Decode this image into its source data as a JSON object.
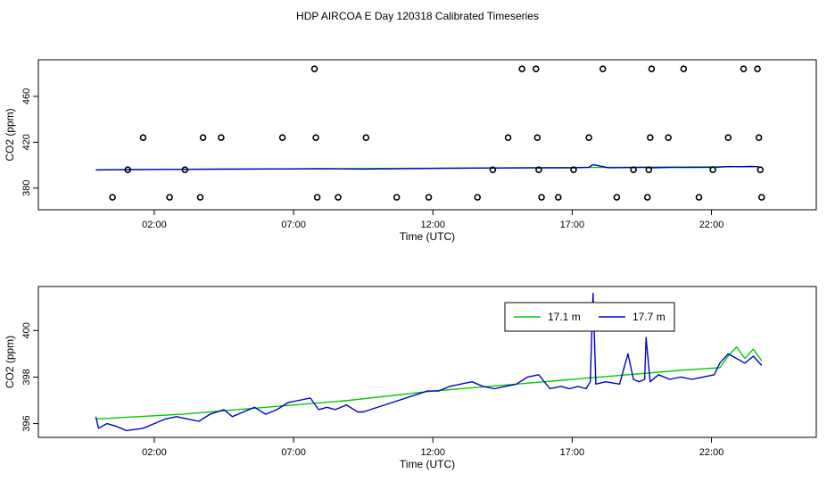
{
  "title": "HDP AIRCOA E  Day 120318  Calibrated Timeseries",
  "chart_data": [
    {
      "type": "scatter",
      "xlabel": "Time (UTC)",
      "ylabel": "CO2 (ppm)",
      "x_units": "hours UTC",
      "xlim": [
        -1.2,
        24.8
      ],
      "ylim": [
        365,
        488
      ],
      "x_ticks": [
        {
          "v": 2,
          "label": "02:00"
        },
        {
          "v": 7,
          "label": "07:00"
        },
        {
          "v": 12,
          "label": "12:00"
        },
        {
          "v": 17,
          "label": "17:00"
        },
        {
          "v": 22,
          "label": "22:00"
        }
      ],
      "y_ticks": [
        {
          "v": 380,
          "label": "380"
        },
        {
          "v": 420,
          "label": "420"
        },
        {
          "v": 460,
          "label": "460"
        }
      ],
      "points": [
        {
          "x": 0.5,
          "y": 372
        },
        {
          "x": 1.05,
          "y": 396
        },
        {
          "x": 1.6,
          "y": 424
        },
        {
          "x": 2.55,
          "y": 372
        },
        {
          "x": 3.1,
          "y": 396
        },
        {
          "x": 3.65,
          "y": 372
        },
        {
          "x": 3.75,
          "y": 424
        },
        {
          "x": 4.4,
          "y": 424
        },
        {
          "x": 6.6,
          "y": 424
        },
        {
          "x": 7.75,
          "y": 484
        },
        {
          "x": 7.8,
          "y": 424
        },
        {
          "x": 7.85,
          "y": 372
        },
        {
          "x": 8.6,
          "y": 372
        },
        {
          "x": 9.6,
          "y": 424
        },
        {
          "x": 10.7,
          "y": 372
        },
        {
          "x": 11.85,
          "y": 372
        },
        {
          "x": 13.6,
          "y": 372
        },
        {
          "x": 14.15,
          "y": 396
        },
        {
          "x": 14.7,
          "y": 424
        },
        {
          "x": 15.2,
          "y": 484
        },
        {
          "x": 15.7,
          "y": 484
        },
        {
          "x": 15.75,
          "y": 424
        },
        {
          "x": 15.8,
          "y": 396
        },
        {
          "x": 15.9,
          "y": 372
        },
        {
          "x": 16.5,
          "y": 372
        },
        {
          "x": 17.05,
          "y": 396
        },
        {
          "x": 17.6,
          "y": 424
        },
        {
          "x": 18.1,
          "y": 484
        },
        {
          "x": 18.6,
          "y": 372
        },
        {
          "x": 19.2,
          "y": 396
        },
        {
          "x": 19.7,
          "y": 372
        },
        {
          "x": 19.75,
          "y": 396
        },
        {
          "x": 19.8,
          "y": 424
        },
        {
          "x": 19.85,
          "y": 484
        },
        {
          "x": 20.45,
          "y": 424
        },
        {
          "x": 21.0,
          "y": 484
        },
        {
          "x": 21.55,
          "y": 372
        },
        {
          "x": 22.05,
          "y": 396
        },
        {
          "x": 22.6,
          "y": 424
        },
        {
          "x": 23.15,
          "y": 484
        },
        {
          "x": 23.65,
          "y": 484
        },
        {
          "x": 23.7,
          "y": 424
        },
        {
          "x": 23.75,
          "y": 396
        },
        {
          "x": 23.8,
          "y": 372
        }
      ],
      "lines": [
        {
          "color": "#00cc00",
          "x": [
            -0.1,
            23.5
          ],
          "y": [
            396,
            398.7
          ]
        },
        {
          "color": "#0000cc",
          "x": [
            -0.1,
            1.0,
            3.0,
            5.0,
            7.0,
            8.0,
            9.5,
            11.5,
            13.5,
            15.5,
            17.0,
            17.6,
            17.75,
            18.3,
            19.2,
            19.6,
            19.8,
            20.5,
            21.3,
            22.2,
            22.6,
            23.0,
            23.4,
            23.7
          ],
          "y": [
            395.8,
            396.1,
            396.4,
            396.6,
            396.8,
            396.9,
            396.6,
            397.1,
            397.5,
            397.6,
            397.7,
            398.2,
            400.5,
            397.8,
            397.9,
            398.2,
            397.7,
            398.1,
            398.0,
            398.2,
            398.8,
            398.6,
            398.9,
            398.6
          ]
        }
      ]
    },
    {
      "type": "line",
      "xlabel": "Time (UTC)",
      "ylabel": "CO2 (ppm)",
      "x_units": "hours UTC",
      "xlim": [
        -1.2,
        24.8
      ],
      "ylim": [
        395.6,
        401.7
      ],
      "x_ticks": [
        {
          "v": 2,
          "label": "02:00"
        },
        {
          "v": 7,
          "label": "07:00"
        },
        {
          "v": 12,
          "label": "12:00"
        },
        {
          "v": 17,
          "label": "17:00"
        },
        {
          "v": 22,
          "label": "22:00"
        }
      ],
      "y_ticks": [
        {
          "v": 396,
          "label": "396"
        },
        {
          "v": 398,
          "label": "398"
        },
        {
          "v": 400,
          "label": "400"
        }
      ],
      "legend": {
        "placement": "top-right"
      },
      "series": [
        {
          "name": "17.1 m",
          "color": "#00cc00",
          "x": [
            -0.1,
            3.0,
            6.0,
            9.0,
            12.0,
            15.0,
            18.0,
            21.0,
            22.3,
            22.6,
            22.9,
            23.2,
            23.5,
            23.8
          ],
          "y": [
            396.2,
            396.4,
            396.7,
            397.0,
            397.4,
            397.7,
            398.0,
            398.3,
            398.4,
            398.9,
            399.3,
            398.8,
            399.2,
            398.7
          ]
        },
        {
          "name": "17.7 m",
          "color": "#0000cc",
          "x": [
            -0.1,
            0.0,
            0.3,
            0.6,
            1.0,
            1.6,
            2.0,
            2.4,
            2.8,
            3.2,
            3.6,
            4.0,
            4.5,
            4.8,
            5.2,
            5.6,
            6.0,
            6.4,
            6.8,
            7.2,
            7.6,
            7.9,
            8.2,
            8.5,
            8.9,
            9.3,
            9.5,
            11.8,
            12.2,
            12.6,
            13.0,
            13.4,
            13.8,
            14.2,
            14.6,
            15.0,
            15.4,
            15.8,
            16.2,
            16.6,
            16.9,
            17.2,
            17.5,
            17.65,
            17.75,
            17.85,
            18.2,
            18.7,
            19.0,
            19.2,
            19.4,
            19.6,
            19.65,
            19.8,
            20.1,
            20.5,
            20.9,
            21.3,
            21.7,
            22.1,
            22.3,
            22.6,
            22.9,
            23.2,
            23.5,
            23.8
          ],
          "y": [
            396.3,
            395.8,
            396.0,
            395.9,
            395.7,
            395.8,
            396.0,
            396.2,
            396.3,
            396.2,
            396.1,
            396.4,
            396.6,
            396.3,
            396.5,
            396.7,
            396.4,
            396.6,
            396.9,
            397.0,
            397.1,
            396.6,
            396.7,
            396.6,
            396.8,
            396.5,
            396.5,
            397.4,
            397.4,
            397.6,
            397.7,
            397.8,
            397.6,
            397.5,
            397.6,
            397.7,
            398.0,
            398.1,
            397.5,
            397.6,
            397.5,
            397.6,
            397.5,
            397.8,
            401.6,
            397.7,
            397.8,
            397.7,
            399.0,
            397.9,
            397.8,
            397.9,
            399.7,
            397.8,
            398.1,
            397.9,
            398.0,
            397.9,
            398.0,
            398.1,
            398.6,
            399.0,
            398.8,
            398.6,
            398.9,
            398.5
          ]
        }
      ]
    }
  ]
}
